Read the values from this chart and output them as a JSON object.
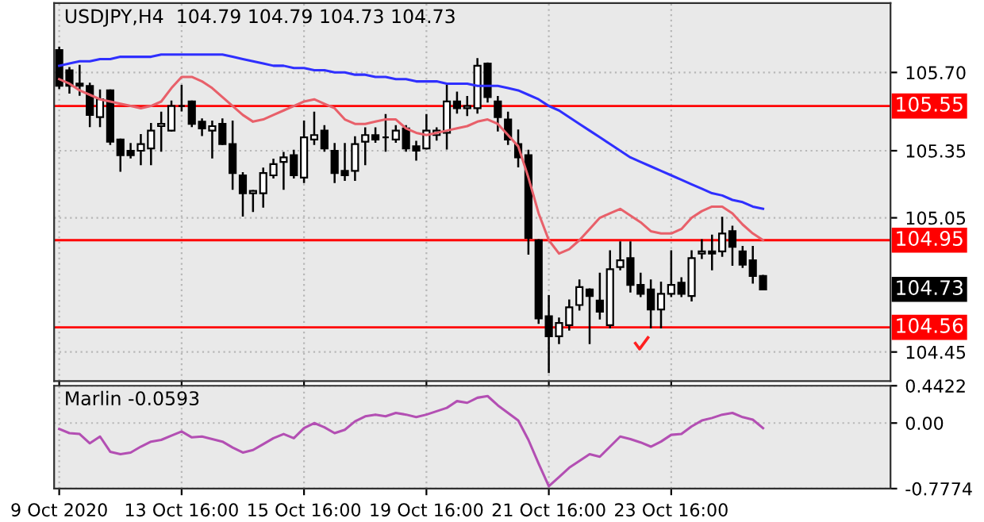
{
  "chart_data": [
    {
      "type": "candlestick",
      "title": "USDJPY,H4  104.79 104.79 104.73 104.73",
      "categories": [
        null,
        null,
        null,
        null,
        null,
        null,
        null,
        null,
        null,
        null,
        null,
        null,
        null,
        null,
        null,
        null,
        null,
        null,
        null,
        null,
        null,
        null,
        null,
        null,
        null,
        null,
        null,
        null,
        null,
        null,
        null,
        null,
        null,
        null,
        null,
        null,
        null,
        null,
        null,
        null,
        null,
        null,
        null,
        null,
        null,
        null,
        null,
        null,
        null,
        null,
        null,
        null,
        null,
        null,
        null,
        null,
        null,
        null,
        null,
        null,
        null,
        null,
        null,
        null,
        null,
        null,
        null,
        null,
        null,
        null
      ],
      "ohlc": [
        [
          105.8,
          105.81,
          105.63,
          105.64
        ],
        [
          105.71,
          105.72,
          105.61,
          105.64
        ],
        [
          105.65,
          105.73,
          105.6,
          105.64
        ],
        [
          105.64,
          105.65,
          105.46,
          105.51
        ],
        [
          105.5,
          105.62,
          105.46,
          105.58
        ],
        [
          105.62,
          105.62,
          105.38,
          105.39
        ],
        [
          105.4,
          105.4,
          105.26,
          105.33
        ],
        [
          105.35,
          105.38,
          105.32,
          105.33
        ],
        [
          105.35,
          105.42,
          105.29,
          105.38
        ],
        [
          105.36,
          105.47,
          105.29,
          105.44
        ],
        [
          105.46,
          105.52,
          105.35,
          105.47
        ],
        [
          105.44,
          105.57,
          105.44,
          105.55
        ],
        [
          105.55,
          105.64,
          105.53,
          105.55
        ],
        [
          105.57,
          105.57,
          105.46,
          105.47
        ],
        [
          105.48,
          105.49,
          105.42,
          105.45
        ],
        [
          105.44,
          105.48,
          105.32,
          105.46
        ],
        [
          105.47,
          105.49,
          105.38,
          105.38
        ],
        [
          105.38,
          105.48,
          105.18,
          105.25
        ],
        [
          105.24,
          105.25,
          105.06,
          105.16
        ],
        [
          105.16,
          105.17,
          105.08,
          105.17
        ],
        [
          105.16,
          105.27,
          105.1,
          105.25
        ],
        [
          105.24,
          105.31,
          105.23,
          105.29
        ],
        [
          105.3,
          105.34,
          105.18,
          105.32
        ],
        [
          105.33,
          105.35,
          105.23,
          105.24
        ],
        [
          105.23,
          105.48,
          105.21,
          105.41
        ],
        [
          105.4,
          105.52,
          105.38,
          105.42
        ],
        [
          105.44,
          105.46,
          105.35,
          105.36
        ],
        [
          105.35,
          105.38,
          105.21,
          105.25
        ],
        [
          105.26,
          105.38,
          105.22,
          105.24
        ],
        [
          105.26,
          105.41,
          105.22,
          105.38
        ],
        [
          105.39,
          105.45,
          105.29,
          105.42
        ],
        [
          105.42,
          105.45,
          105.39,
          105.4
        ],
        [
          105.41,
          105.51,
          105.35,
          105.41
        ],
        [
          105.4,
          105.46,
          105.39,
          105.44
        ],
        [
          105.45,
          105.46,
          105.35,
          105.36
        ],
        [
          105.37,
          105.39,
          105.31,
          105.35
        ],
        [
          105.36,
          105.51,
          105.36,
          105.44
        ],
        [
          105.42,
          105.45,
          105.4,
          105.44
        ],
        [
          105.43,
          105.64,
          105.36,
          105.57
        ],
        [
          105.57,
          105.61,
          105.52,
          105.54
        ],
        [
          105.54,
          105.59,
          105.51,
          105.55
        ],
        [
          105.54,
          105.76,
          105.52,
          105.73
        ],
        [
          105.74,
          105.74,
          105.57,
          105.59
        ],
        [
          105.57,
          105.59,
          105.44,
          105.5
        ],
        [
          105.49,
          105.52,
          105.38,
          105.4
        ],
        [
          105.38,
          105.44,
          105.28,
          105.32
        ],
        [
          105.33,
          105.35,
          104.89,
          104.96
        ],
        [
          104.95,
          104.95,
          104.58,
          104.6
        ],
        [
          104.61,
          104.7,
          104.36,
          104.52
        ],
        [
          104.52,
          104.6,
          104.49,
          104.58
        ],
        [
          104.57,
          104.68,
          104.55,
          104.65
        ],
        [
          104.66,
          104.77,
          104.64,
          104.74
        ],
        [
          104.73,
          104.73,
          104.49,
          104.7
        ],
        [
          104.68,
          104.8,
          104.6,
          104.63
        ],
        [
          104.57,
          104.9,
          104.56,
          104.82
        ],
        [
          104.83,
          104.94,
          104.82,
          104.86
        ],
        [
          104.87,
          104.94,
          104.72,
          104.75
        ],
        [
          104.75,
          104.8,
          104.7,
          104.71
        ],
        [
          104.73,
          104.77,
          104.56,
          104.64
        ],
        [
          104.64,
          104.76,
          104.56,
          104.71
        ],
        [
          104.71,
          104.9,
          104.7,
          104.75
        ],
        [
          104.76,
          104.78,
          104.7,
          104.71
        ],
        [
          104.7,
          104.9,
          104.68,
          104.87
        ],
        [
          104.89,
          104.95,
          104.87,
          104.9
        ],
        [
          104.9,
          104.97,
          104.82,
          104.89
        ],
        [
          104.9,
          105.05,
          104.88,
          104.98
        ],
        [
          104.99,
          105.01,
          104.84,
          104.92
        ],
        [
          104.9,
          104.92,
          104.83,
          104.84
        ],
        [
          104.86,
          104.92,
          104.76,
          104.79
        ],
        [
          104.79,
          104.79,
          104.73,
          104.73
        ]
      ],
      "series": [
        {
          "type": "line",
          "color": "#2f2fff",
          "values": [
            105.73,
            105.74,
            105.75,
            105.75,
            105.76,
            105.76,
            105.77,
            105.77,
            105.77,
            105.77,
            105.78,
            105.78,
            105.78,
            105.78,
            105.78,
            105.78,
            105.78,
            105.77,
            105.76,
            105.75,
            105.74,
            105.73,
            105.73,
            105.72,
            105.72,
            105.71,
            105.71,
            105.7,
            105.7,
            105.69,
            105.69,
            105.68,
            105.68,
            105.67,
            105.67,
            105.66,
            105.66,
            105.66,
            105.65,
            105.65,
            105.65,
            105.64,
            105.64,
            105.64,
            105.63,
            105.62,
            105.6,
            105.58,
            105.55,
            105.53,
            105.5,
            105.47,
            105.44,
            105.41,
            105.38,
            105.35,
            105.32,
            105.3,
            105.28,
            105.26,
            105.24,
            105.22,
            105.2,
            105.18,
            105.16,
            105.15,
            105.13,
            105.12,
            105.1,
            105.09
          ]
        },
        {
          "type": "line",
          "color": "#e8606a",
          "values": [
            105.67,
            105.65,
            105.62,
            105.6,
            105.58,
            105.57,
            105.56,
            105.55,
            105.54,
            105.55,
            105.57,
            105.63,
            105.68,
            105.68,
            105.66,
            105.63,
            105.59,
            105.55,
            105.51,
            105.48,
            105.49,
            105.51,
            105.53,
            105.55,
            105.57,
            105.58,
            105.56,
            105.54,
            105.49,
            105.47,
            105.47,
            105.48,
            105.49,
            105.49,
            105.45,
            105.43,
            105.42,
            105.43,
            105.44,
            105.45,
            105.46,
            105.48,
            105.49,
            105.47,
            105.42,
            105.37,
            105.23,
            105.07,
            104.95,
            104.89,
            104.91,
            104.95,
            105.0,
            105.05,
            105.07,
            105.09,
            105.06,
            105.03,
            104.99,
            104.98,
            104.98,
            105.0,
            105.05,
            105.08,
            105.1,
            105.1,
            105.07,
            105.02,
            104.98,
            104.95
          ]
        }
      ],
      "ylim": [
        104.32,
        106.01
      ],
      "yticks": [
        {
          "value": 105.7,
          "label": "105.70"
        },
        105.35,
        105.05,
        104.45
      ],
      "tick_labels": "y",
      "grid": true,
      "ref_lines": [
        {
          "axis": "y",
          "value": 105.55,
          "label": "105.55",
          "color": "#ff0000"
        },
        {
          "axis": "y",
          "value": 104.95,
          "label": "104.95",
          "color": "#ff0000"
        },
        {
          "axis": "y",
          "value": 104.56,
          "label": "104.56",
          "color": "#ff0000"
        }
      ],
      "annotations": [
        "104.73"
      ]
    },
    {
      "type": "line",
      "title": "Marlin -0.0593",
      "categories": [
        "9 Oct 2020",
        null,
        null,
        null,
        null,
        null,
        null,
        null,
        null,
        null,
        null,
        null,
        "13 Oct 16:00",
        null,
        null,
        null,
        null,
        null,
        null,
        null,
        null,
        null,
        null,
        null,
        "15 Oct 16:00",
        null,
        null,
        null,
        null,
        null,
        null,
        null,
        null,
        null,
        null,
        null,
        "19 Oct 16:00",
        null,
        null,
        null,
        null,
        null,
        null,
        null,
        null,
        null,
        null,
        null,
        "21 Oct 16:00",
        null,
        null,
        null,
        null,
        null,
        null,
        null,
        null,
        null,
        null,
        null,
        "23 Oct 16:00",
        null,
        null,
        null,
        null,
        null,
        null,
        null,
        null,
        null
      ],
      "series": [
        {
          "color": "#b34fb3",
          "values": [
            -0.07,
            -0.12,
            -0.13,
            -0.24,
            -0.16,
            -0.34,
            -0.37,
            -0.35,
            -0.28,
            -0.22,
            -0.2,
            -0.15,
            -0.1,
            -0.17,
            -0.16,
            -0.19,
            -0.22,
            -0.29,
            -0.35,
            -0.32,
            -0.25,
            -0.18,
            -0.13,
            -0.18,
            -0.06,
            0.0,
            -0.05,
            -0.12,
            -0.08,
            0.02,
            0.08,
            0.1,
            0.08,
            0.12,
            0.1,
            0.07,
            0.1,
            0.14,
            0.18,
            0.26,
            0.24,
            0.3,
            0.32,
            0.21,
            0.12,
            0.03,
            -0.2,
            -0.48,
            -0.75,
            -0.64,
            -0.53,
            -0.45,
            -0.37,
            -0.4,
            -0.28,
            -0.16,
            -0.19,
            -0.23,
            -0.28,
            -0.22,
            -0.14,
            -0.13,
            -0.04,
            0.03,
            0.06,
            0.1,
            0.12,
            0.07,
            0.04,
            -0.06
          ]
        }
      ],
      "ylim": [
        -0.7774,
        0.4422
      ],
      "yticks": [
        0.4422,
        {
          "value": 0,
          "label": "0.00"
        },
        -0.7774
      ],
      "grid": true
    }
  ]
}
